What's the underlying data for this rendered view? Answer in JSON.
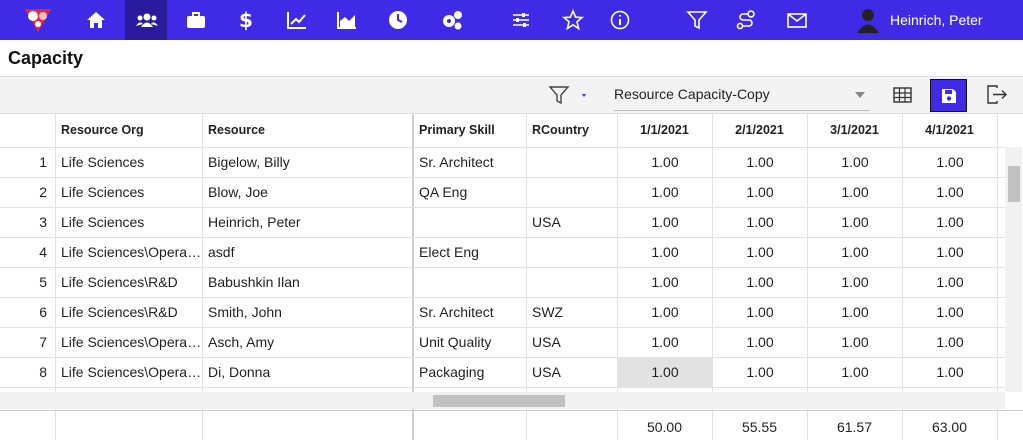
{
  "nav": {
    "user": "Heinrich, Peter"
  },
  "page": {
    "title": "Capacity"
  },
  "toolbar": {
    "view": "Resource Capacity-Copy"
  },
  "table": {
    "columns": [
      "Resource Org",
      "Resource",
      "Primary Skill",
      "RCountry",
      "1/1/2021",
      "2/1/2021",
      "3/1/2021",
      "4/1/2021"
    ],
    "rows": [
      {
        "num": 1,
        "org": "Life Sciences",
        "resource": "Bigelow, Billy",
        "skill": "Sr. Architect",
        "values": [
          "1.00",
          "1.00",
          "1.00",
          "1.00"
        ]
      },
      {
        "num": 2,
        "org": "Life Sciences",
        "resource": "Blow, Joe",
        "skill": "QA Eng",
        "values": [
          "1.00",
          "1.00",
          "1.00",
          "1.00"
        ]
      },
      {
        "num": 3,
        "org": "Life Sciences",
        "resource": "Heinrich, Peter",
        "country": "USA",
        "values": [
          "1.00",
          "1.00",
          "1.00",
          "1.00"
        ]
      },
      {
        "num": 4,
        "org": "Life Sciences\\Opera…",
        "resource": "asdf",
        "skill": "Elect Eng",
        "values": [
          "1.00",
          "1.00",
          "1.00",
          "1.00"
        ]
      },
      {
        "num": 5,
        "org": "Life Sciences\\R&D",
        "resource": "Babushkin Ilan",
        "values": [
          "1.00",
          "1.00",
          "1.00",
          "1.00"
        ]
      },
      {
        "num": 6,
        "org": "Life Sciences\\R&D",
        "resource": "Smith, John",
        "skill": "Sr. Architect",
        "country": "SWZ",
        "values": [
          "1.00",
          "1.00",
          "1.00",
          "1.00"
        ]
      },
      {
        "num": 7,
        "org": "Life Sciences\\Opera…",
        "resource": "Asch, Amy",
        "skill": "Unit Quality",
        "country": "USA",
        "values": [
          "1.00",
          "1.00",
          "1.00",
          "1.00"
        ]
      },
      {
        "num": 8,
        "org": "Life Sciences\\Opera…",
        "resource": "Di, Donna",
        "skill": "Packaging",
        "country": "USA",
        "values": [
          "1.00",
          "1.00",
          "1.00",
          "1.00"
        ]
      }
    ],
    "totals": [
      "50.00",
      "55.55",
      "61.57",
      "63.00"
    ]
  }
}
